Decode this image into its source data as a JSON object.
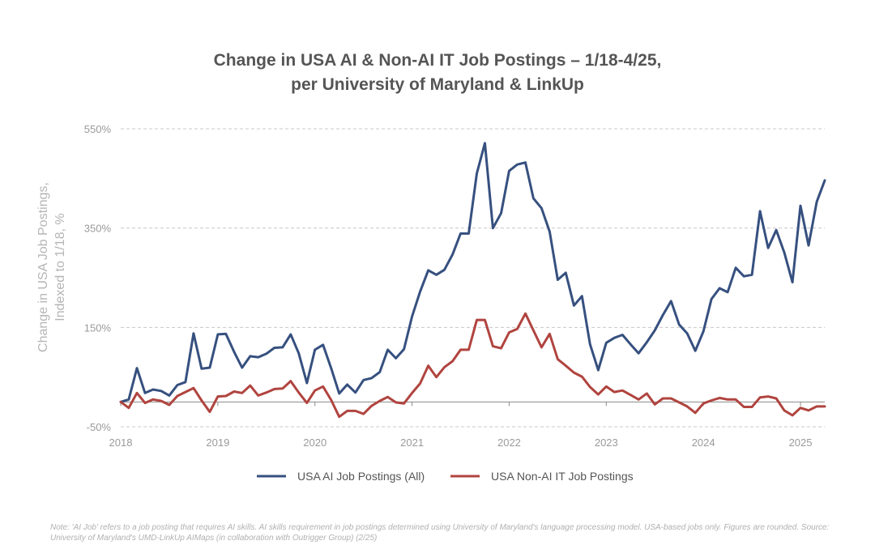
{
  "title_line1": "Change in USA AI & Non-AI IT Job Postings – 1/18-4/25,",
  "title_line2": "per University of Maryland & LinkUp",
  "note": "Note: 'AI Job' refers to a job posting that requires AI skills. AI skills requirement in job postings determined using University of Maryland's language processing model. USA-based jobs only. Figures are rounded. Source: University of Maryland's UMD-LinkUp AIMaps (in collaboration with Outrigger Group) (2/25)",
  "chart_data": {
    "type": "line",
    "ylabel_line1": "Change in USA Job Postings,",
    "ylabel_line2": "Indexed to 1/18, %",
    "ylim": [
      -50,
      550
    ],
    "yticks": [
      -50,
      150,
      350,
      550
    ],
    "ytick_labels": [
      "-50%",
      "150%",
      "350%",
      "550%"
    ],
    "xlim": [
      2018,
      2025.25
    ],
    "xticks": [
      2018,
      2019,
      2020,
      2021,
      2022,
      2023,
      2024,
      2025
    ],
    "xtick_labels": [
      "2018",
      "2019",
      "2020",
      "2021",
      "2022",
      "2023",
      "2024",
      "2025"
    ],
    "grid": true,
    "legend_position": "bottom",
    "zero_line": 0,
    "series": [
      {
        "name": "USA AI Job Postings (All)",
        "color": "#36507f",
        "x": [
          2018.0,
          2018.083,
          2018.167,
          2018.25,
          2018.333,
          2018.417,
          2018.5,
          2018.583,
          2018.667,
          2018.75,
          2018.833,
          2018.917,
          2019.0,
          2019.083,
          2019.167,
          2019.25,
          2019.333,
          2019.417,
          2019.5,
          2019.583,
          2019.667,
          2019.75,
          2019.833,
          2019.917,
          2020.0,
          2020.083,
          2020.167,
          2020.25,
          2020.333,
          2020.417,
          2020.5,
          2020.583,
          2020.667,
          2020.75,
          2020.833,
          2020.917,
          2021.0,
          2021.083,
          2021.167,
          2021.25,
          2021.333,
          2021.417,
          2021.5,
          2021.583,
          2021.667,
          2021.75,
          2021.833,
          2021.917,
          2022.0,
          2022.083,
          2022.167,
          2022.25,
          2022.333,
          2022.417,
          2022.5,
          2022.583,
          2022.667,
          2022.75,
          2022.833,
          2022.917,
          2023.0,
          2023.083,
          2023.167,
          2023.25,
          2023.333,
          2023.417,
          2023.5,
          2023.583,
          2023.667,
          2023.75,
          2023.833,
          2023.917,
          2024.0,
          2024.083,
          2024.167,
          2024.25,
          2024.333,
          2024.417,
          2024.5,
          2024.583,
          2024.667,
          2024.75,
          2024.833,
          2024.917,
          2025.0,
          2025.083,
          2025.167,
          2025.25
        ],
        "values": [
          0,
          5,
          68,
          18,
          25,
          22,
          13,
          34,
          40,
          138,
          67,
          69,
          136,
          137,
          101,
          69,
          92,
          90,
          97,
          109,
          110,
          136,
          98,
          38,
          105,
          115,
          68,
          17,
          35,
          19,
          44,
          48,
          60,
          105,
          88,
          106,
          172,
          222,
          265,
          256,
          266,
          297,
          339,
          339,
          460,
          521,
          350,
          380,
          465,
          478,
          482,
          410,
          390,
          343,
          246,
          260,
          194,
          213,
          116,
          64,
          119,
          129,
          135,
          116,
          98,
          120,
          144,
          175,
          203,
          156,
          138,
          103,
          142,
          207,
          229,
          221,
          270,
          253,
          256,
          384,
          310,
          346,
          301,
          241,
          395,
          315,
          403,
          446
        ]
      },
      {
        "name": "USA Non-AI IT Job Postings",
        "color": "#b0443f",
        "x": [
          2018.0,
          2018.083,
          2018.167,
          2018.25,
          2018.333,
          2018.417,
          2018.5,
          2018.583,
          2018.667,
          2018.75,
          2018.833,
          2018.917,
          2019.0,
          2019.083,
          2019.167,
          2019.25,
          2019.333,
          2019.417,
          2019.5,
          2019.583,
          2019.667,
          2019.75,
          2019.833,
          2019.917,
          2020.0,
          2020.083,
          2020.167,
          2020.25,
          2020.333,
          2020.417,
          2020.5,
          2020.583,
          2020.667,
          2020.75,
          2020.833,
          2020.917,
          2021.0,
          2021.083,
          2021.167,
          2021.25,
          2021.333,
          2021.417,
          2021.5,
          2021.583,
          2021.667,
          2021.75,
          2021.833,
          2021.917,
          2022.0,
          2022.083,
          2022.167,
          2022.25,
          2022.333,
          2022.417,
          2022.5,
          2022.583,
          2022.667,
          2022.75,
          2022.833,
          2022.917,
          2023.0,
          2023.083,
          2023.167,
          2023.25,
          2023.333,
          2023.417,
          2023.5,
          2023.583,
          2023.667,
          2023.75,
          2023.833,
          2023.917,
          2024.0,
          2024.083,
          2024.167,
          2024.25,
          2024.333,
          2024.417,
          2024.5,
          2024.583,
          2024.667,
          2024.75,
          2024.833,
          2024.917,
          2025.0,
          2025.083,
          2025.167,
          2025.25
        ],
        "values": [
          0,
          -12,
          18,
          -2,
          5,
          2,
          -6,
          12,
          20,
          28,
          3,
          -20,
          11,
          12,
          21,
          18,
          33,
          13,
          19,
          26,
          27,
          42,
          19,
          -2,
          23,
          31,
          4,
          -30,
          -18,
          -18,
          -24,
          -8,
          2,
          10,
          -1,
          -3,
          18,
          37,
          73,
          50,
          70,
          82,
          105,
          105,
          165,
          165,
          112,
          108,
          140,
          147,
          178,
          144,
          110,
          137,
          86,
          73,
          59,
          51,
          30,
          15,
          31,
          20,
          23,
          14,
          5,
          17,
          -5,
          7,
          7,
          -1,
          -9,
          -22,
          -3,
          3,
          8,
          5,
          5,
          -10,
          -10,
          9,
          11,
          7,
          -17,
          -27,
          -12,
          -17,
          -9,
          -9
        ]
      }
    ]
  }
}
